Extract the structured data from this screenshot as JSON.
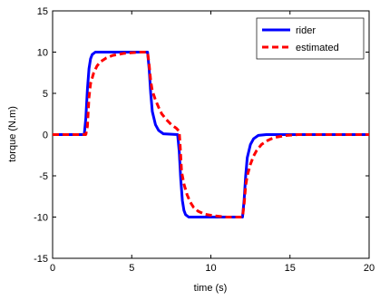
{
  "chart_data": {
    "type": "line",
    "xlabel": "time (s)",
    "ylabel": "torque (N.m)",
    "xlim": [
      0,
      20
    ],
    "ylim": [
      -15,
      15
    ],
    "xticks": [
      0,
      5,
      10,
      15,
      20
    ],
    "yticks": [
      -15,
      -10,
      -5,
      0,
      5,
      10,
      15
    ],
    "grid": false,
    "legend_position": "top-right",
    "series": [
      {
        "name": "rider",
        "color": "#0000ff",
        "style": "solid",
        "points": [
          [
            0,
            0
          ],
          [
            2.0,
            0
          ],
          [
            2.1,
            2.0
          ],
          [
            2.2,
            5.5
          ],
          [
            2.3,
            8.0
          ],
          [
            2.4,
            9.2
          ],
          [
            2.5,
            9.7
          ],
          [
            2.7,
            10.0
          ],
          [
            6.0,
            10.0
          ],
          [
            6.1,
            8.0
          ],
          [
            6.2,
            5.0
          ],
          [
            6.3,
            2.8
          ],
          [
            6.5,
            1.2
          ],
          [
            6.7,
            0.5
          ],
          [
            7.0,
            0.1
          ],
          [
            7.9,
            0
          ],
          [
            8.0,
            -2.0
          ],
          [
            8.1,
            -5.5
          ],
          [
            8.2,
            -8.0
          ],
          [
            8.3,
            -9.2
          ],
          [
            8.4,
            -9.7
          ],
          [
            8.6,
            -10.0
          ],
          [
            12.0,
            -10.0
          ],
          [
            12.1,
            -8.0
          ],
          [
            12.2,
            -5.0
          ],
          [
            12.3,
            -2.8
          ],
          [
            12.5,
            -1.2
          ],
          [
            12.7,
            -0.5
          ],
          [
            13.0,
            -0.1
          ],
          [
            13.5,
            0
          ],
          [
            20,
            0
          ]
        ]
      },
      {
        "name": "estimated",
        "color": "#ff0000",
        "style": "dashed",
        "points": [
          [
            0,
            0
          ],
          [
            2.1,
            0
          ],
          [
            2.2,
            1.0
          ],
          [
            2.3,
            4.5
          ],
          [
            2.4,
            6.2
          ],
          [
            2.6,
            7.5
          ],
          [
            2.8,
            8.3
          ],
          [
            3.0,
            8.8
          ],
          [
            3.4,
            9.3
          ],
          [
            3.8,
            9.6
          ],
          [
            4.5,
            9.85
          ],
          [
            5.5,
            10.0
          ],
          [
            6.0,
            10.0
          ],
          [
            6.1,
            8.5
          ],
          [
            6.2,
            6.5
          ],
          [
            6.3,
            5.3
          ],
          [
            6.5,
            4.2
          ],
          [
            6.7,
            3.3
          ],
          [
            6.9,
            2.5
          ],
          [
            7.2,
            1.8
          ],
          [
            7.5,
            1.2
          ],
          [
            7.8,
            0.8
          ],
          [
            8.0,
            0.4
          ],
          [
            8.05,
            -1.0
          ],
          [
            8.15,
            -4.5
          ],
          [
            8.3,
            -6.0
          ],
          [
            8.5,
            -7.3
          ],
          [
            8.7,
            -8.2
          ],
          [
            8.9,
            -8.8
          ],
          [
            9.2,
            -9.3
          ],
          [
            9.6,
            -9.65
          ],
          [
            10.2,
            -9.85
          ],
          [
            11.0,
            -10.0
          ],
          [
            12.0,
            -10.0
          ],
          [
            12.1,
            -8.5
          ],
          [
            12.2,
            -6.2
          ],
          [
            12.3,
            -5.0
          ],
          [
            12.5,
            -3.6
          ],
          [
            12.7,
            -2.6
          ],
          [
            12.9,
            -1.9
          ],
          [
            13.2,
            -1.2
          ],
          [
            13.6,
            -0.7
          ],
          [
            14.0,
            -0.35
          ],
          [
            14.8,
            -0.1
          ],
          [
            15.5,
            0
          ],
          [
            20,
            0
          ]
        ]
      }
    ]
  }
}
